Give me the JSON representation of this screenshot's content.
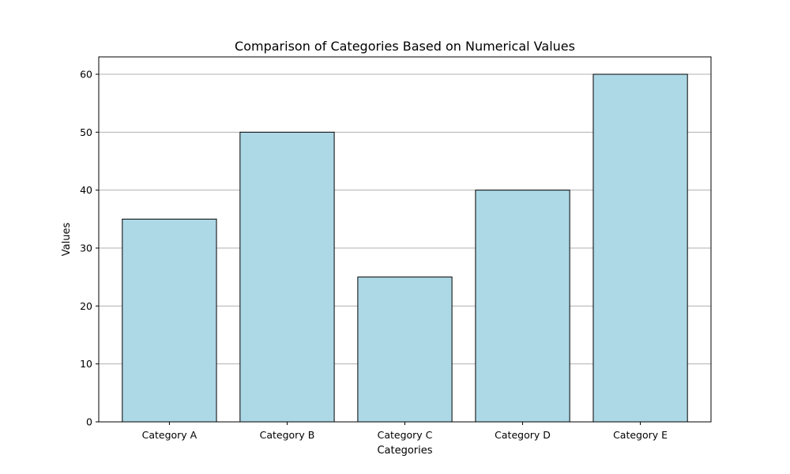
{
  "chart_data": {
    "type": "bar",
    "title": "Comparison of Categories Based on Numerical Values",
    "xlabel": "Categories",
    "ylabel": "Values",
    "categories": [
      "Category A",
      "Category B",
      "Category C",
      "Category D",
      "Category E"
    ],
    "values": [
      35,
      50,
      25,
      40,
      60
    ],
    "ylim": [
      0,
      63
    ],
    "yticks": [
      "0",
      "10",
      "20",
      "30",
      "40",
      "50",
      "60"
    ],
    "grid": "y",
    "legend": "none",
    "bar_color": "#add8e6",
    "bar_edge_color": "#000000",
    "grid_color": "#b0b0b0"
  }
}
